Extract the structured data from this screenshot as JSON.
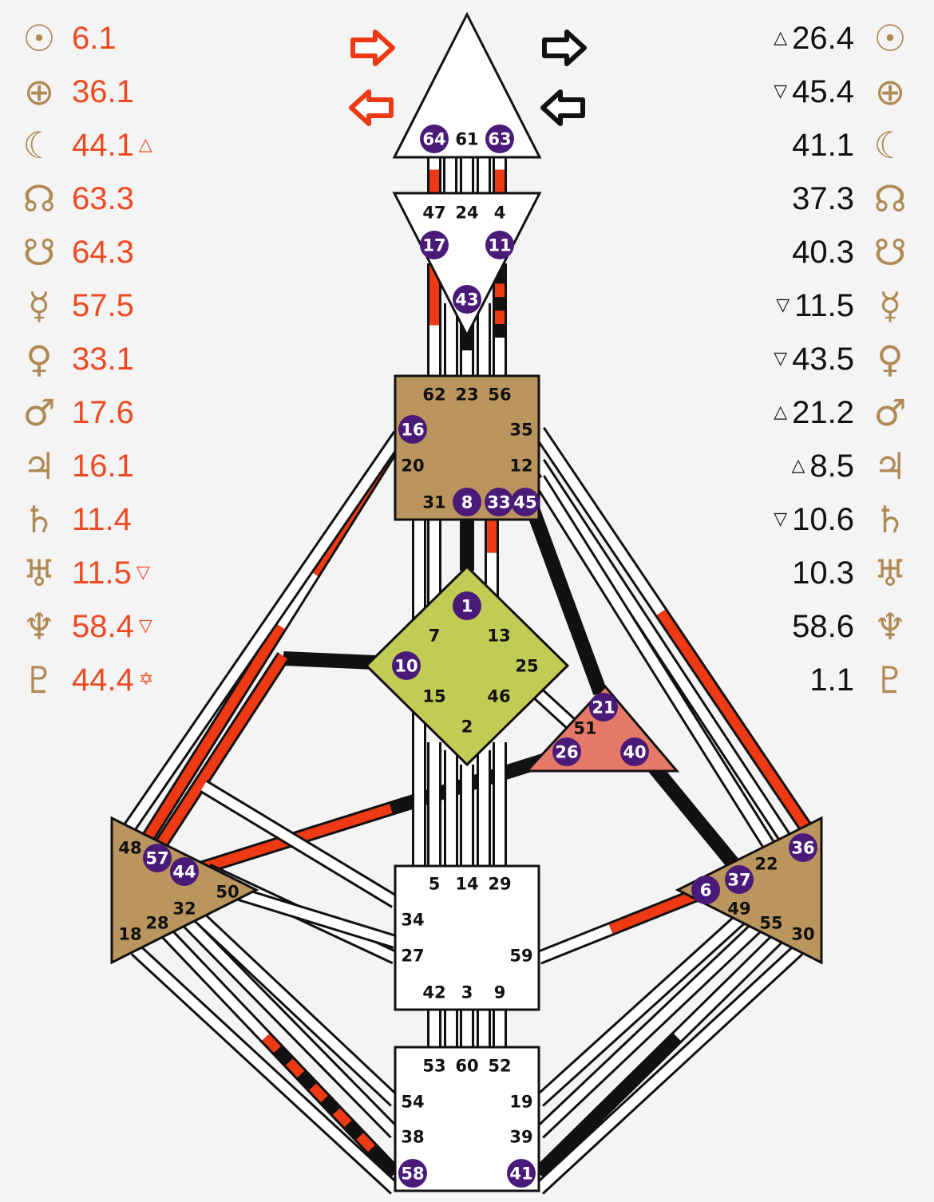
{
  "design": {
    "color": "#ee4a22",
    "rows": [
      {
        "planet": "sun",
        "symbol": "☉",
        "value": "6.1",
        "mark": ""
      },
      {
        "planet": "earth",
        "symbol": "⊕",
        "value": "36.1",
        "mark": ""
      },
      {
        "planet": "moon",
        "symbol": "☾",
        "value": "44.1",
        "mark": "△"
      },
      {
        "planet": "north-node",
        "symbol": "☊",
        "value": "63.3",
        "mark": ""
      },
      {
        "planet": "south-node",
        "symbol": "☋",
        "value": "64.3",
        "mark": ""
      },
      {
        "planet": "mercury",
        "symbol": "☿",
        "value": "57.5",
        "mark": ""
      },
      {
        "planet": "venus",
        "symbol": "♀",
        "value": "33.1",
        "mark": ""
      },
      {
        "planet": "mars",
        "symbol": "♂",
        "value": "17.6",
        "mark": ""
      },
      {
        "planet": "jupiter",
        "symbol": "♃",
        "value": "16.1",
        "mark": ""
      },
      {
        "planet": "saturn",
        "symbol": "♄",
        "value": "11.4",
        "mark": ""
      },
      {
        "planet": "uranus",
        "symbol": "♅",
        "value": "11.5",
        "mark": "▽"
      },
      {
        "planet": "neptune",
        "symbol": "♆",
        "value": "58.4",
        "mark": "▽"
      },
      {
        "planet": "pluto",
        "symbol": "♇",
        "value": "44.4",
        "mark": "✡"
      }
    ]
  },
  "personality": {
    "color": "#111111",
    "rows": [
      {
        "planet": "sun",
        "symbol": "☉",
        "value": "26.4",
        "mark": "△"
      },
      {
        "planet": "earth",
        "symbol": "⊕",
        "value": "45.4",
        "mark": "▽"
      },
      {
        "planet": "moon",
        "symbol": "☾",
        "value": "41.1",
        "mark": ""
      },
      {
        "planet": "north-node",
        "symbol": "☊",
        "value": "37.3",
        "mark": ""
      },
      {
        "planet": "south-node",
        "symbol": "☋",
        "value": "40.3",
        "mark": ""
      },
      {
        "planet": "mercury",
        "symbol": "☿",
        "value": "11.5",
        "mark": "▽"
      },
      {
        "planet": "venus",
        "symbol": "♀",
        "value": "43.5",
        "mark": "▽"
      },
      {
        "planet": "mars",
        "symbol": "♂",
        "value": "21.2",
        "mark": "△"
      },
      {
        "planet": "jupiter",
        "symbol": "♃",
        "value": "8.5",
        "mark": "△"
      },
      {
        "planet": "saturn",
        "symbol": "♄",
        "value": "10.6",
        "mark": "▽"
      },
      {
        "planet": "uranus",
        "symbol": "♅",
        "value": "10.3",
        "mark": ""
      },
      {
        "planet": "neptune",
        "symbol": "♆",
        "value": "58.6",
        "mark": ""
      },
      {
        "planet": "pluto",
        "symbol": "♇",
        "value": "1.1",
        "mark": ""
      }
    ]
  },
  "colors": {
    "design_red": "#ee3a14",
    "personality_black": "#111111",
    "head": "#ffffff",
    "ajna": "#ffffff",
    "throat": "#bb955e",
    "g_center": "#c1cc55",
    "heart": "#e67a68",
    "spleen": "#bb955e",
    "solar_plexus": "#bb955e",
    "sacral": "#ffffff",
    "root": "#ffffff",
    "gate_active": "#4a1a78"
  },
  "centers": {
    "head": {
      "gates": [
        {
          "n": "64",
          "a": true
        },
        {
          "n": "61",
          "a": false
        },
        {
          "n": "63",
          "a": true
        }
      ]
    },
    "ajna": {
      "gates": [
        {
          "n": "47",
          "a": false
        },
        {
          "n": "24",
          "a": false
        },
        {
          "n": "4",
          "a": false
        },
        {
          "n": "17",
          "a": true
        },
        {
          "n": "11",
          "a": true
        },
        {
          "n": "43",
          "a": true
        }
      ]
    },
    "throat": {
      "gates": [
        {
          "n": "62",
          "a": false
        },
        {
          "n": "23",
          "a": false
        },
        {
          "n": "56",
          "a": false
        },
        {
          "n": "16",
          "a": true
        },
        {
          "n": "35",
          "a": false
        },
        {
          "n": "20",
          "a": false
        },
        {
          "n": "12",
          "a": false
        },
        {
          "n": "31",
          "a": false
        },
        {
          "n": "8",
          "a": true
        },
        {
          "n": "33",
          "a": true
        },
        {
          "n": "45",
          "a": true
        }
      ]
    },
    "g": {
      "gates": [
        {
          "n": "1",
          "a": true
        },
        {
          "n": "7",
          "a": false
        },
        {
          "n": "13",
          "a": false
        },
        {
          "n": "10",
          "a": true
        },
        {
          "n": "25",
          "a": false
        },
        {
          "n": "15",
          "a": false
        },
        {
          "n": "46",
          "a": false
        },
        {
          "n": "2",
          "a": false
        }
      ]
    },
    "heart": {
      "gates": [
        {
          "n": "21",
          "a": true
        },
        {
          "n": "51",
          "a": false
        },
        {
          "n": "26",
          "a": true
        },
        {
          "n": "40",
          "a": true
        }
      ]
    },
    "spleen": {
      "gates": [
        {
          "n": "48",
          "a": false
        },
        {
          "n": "57",
          "a": true
        },
        {
          "n": "44",
          "a": true
        },
        {
          "n": "50",
          "a": false
        },
        {
          "n": "32",
          "a": false
        },
        {
          "n": "28",
          "a": false
        },
        {
          "n": "18",
          "a": false
        }
      ]
    },
    "solar_plexus": {
      "gates": [
        {
          "n": "36",
          "a": true
        },
        {
          "n": "22",
          "a": false
        },
        {
          "n": "37",
          "a": true
        },
        {
          "n": "6",
          "a": true
        },
        {
          "n": "49",
          "a": false
        },
        {
          "n": "55",
          "a": false
        },
        {
          "n": "30",
          "a": false
        }
      ]
    },
    "sacral": {
      "gates": [
        {
          "n": "5",
          "a": false
        },
        {
          "n": "14",
          "a": false
        },
        {
          "n": "29",
          "a": false
        },
        {
          "n": "34",
          "a": false
        },
        {
          "n": "27",
          "a": false
        },
        {
          "n": "59",
          "a": false
        },
        {
          "n": "42",
          "a": false
        },
        {
          "n": "3",
          "a": false
        },
        {
          "n": "9",
          "a": false
        }
      ]
    },
    "root": {
      "gates": [
        {
          "n": "53",
          "a": false
        },
        {
          "n": "60",
          "a": false
        },
        {
          "n": "52",
          "a": false
        },
        {
          "n": "54",
          "a": false
        },
        {
          "n": "19",
          "a": false
        },
        {
          "n": "38",
          "a": false
        },
        {
          "n": "39",
          "a": false
        },
        {
          "n": "58",
          "a": true
        },
        {
          "n": "41",
          "a": true
        }
      ]
    }
  }
}
